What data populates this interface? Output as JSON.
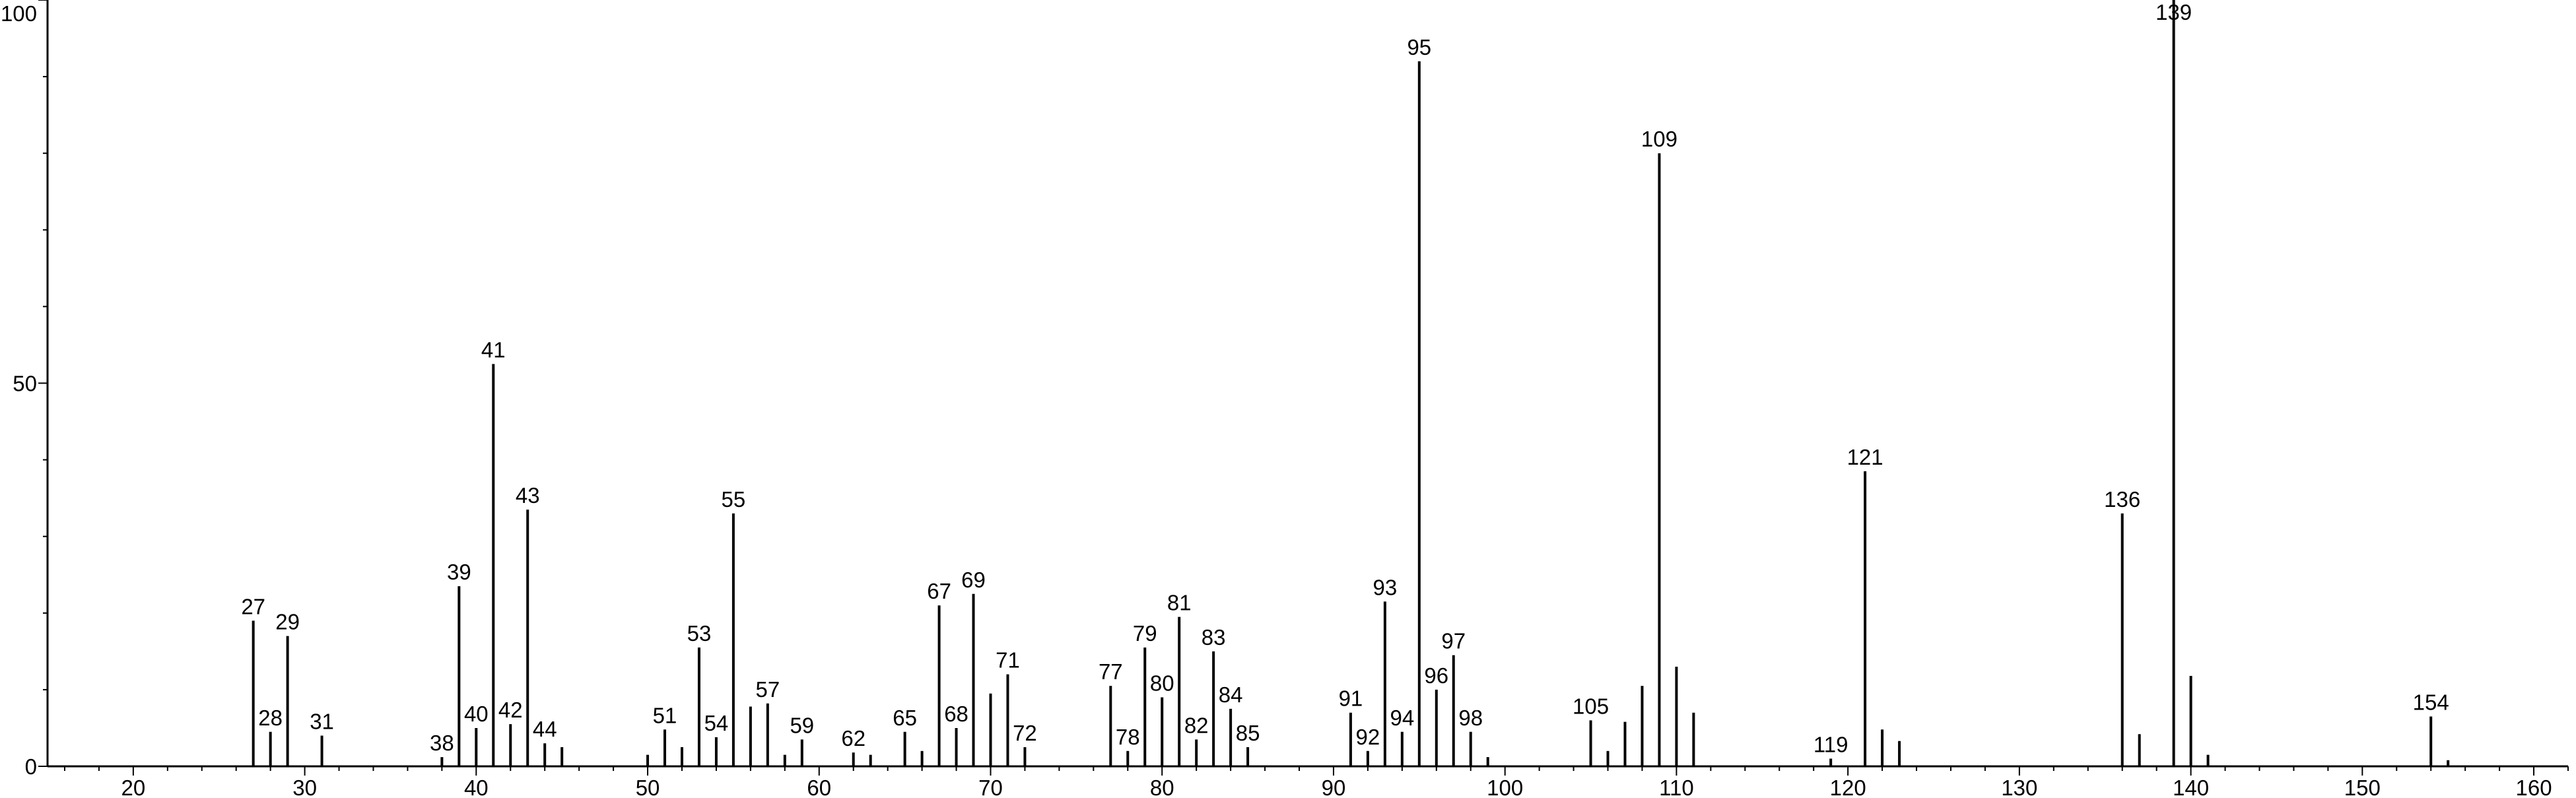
{
  "chart_data": {
    "type": "bar",
    "title": "",
    "xlabel": "",
    "ylabel": "",
    "xlim": [
      15,
      162
    ],
    "ylim": [
      0,
      100
    ],
    "x_ticks": [
      20,
      30,
      40,
      50,
      60,
      70,
      80,
      90,
      100,
      110,
      120,
      130,
      140,
      150,
      160
    ],
    "y_ticks": [
      0,
      50,
      100
    ],
    "grid": false,
    "legend": "none",
    "bar_color": "#000000",
    "peaks": [
      {
        "mz": 27,
        "intensity": 19,
        "label": "27"
      },
      {
        "mz": 28,
        "intensity": 4.5,
        "label": "28"
      },
      {
        "mz": 29,
        "intensity": 17,
        "label": "29"
      },
      {
        "mz": 31,
        "intensity": 4,
        "label": "31"
      },
      {
        "mz": 38,
        "intensity": 1.2,
        "label": "38"
      },
      {
        "mz": 39,
        "intensity": 23.5,
        "label": "39"
      },
      {
        "mz": 40,
        "intensity": 5,
        "label": "40"
      },
      {
        "mz": 41,
        "intensity": 52.5,
        "label": "41"
      },
      {
        "mz": 42,
        "intensity": 5.5,
        "label": "42"
      },
      {
        "mz": 43,
        "intensity": 33.5,
        "label": "43"
      },
      {
        "mz": 44,
        "intensity": 3,
        "label": "44"
      },
      {
        "mz": 45,
        "intensity": 2.5
      },
      {
        "mz": 50,
        "intensity": 1.5
      },
      {
        "mz": 51,
        "intensity": 4.8,
        "label": "51"
      },
      {
        "mz": 52,
        "intensity": 2.5
      },
      {
        "mz": 53,
        "intensity": 15.5,
        "label": "53"
      },
      {
        "mz": 54,
        "intensity": 3.8,
        "label": "54"
      },
      {
        "mz": 55,
        "intensity": 33,
        "label": "55"
      },
      {
        "mz": 56,
        "intensity": 7.8
      },
      {
        "mz": 57,
        "intensity": 8.2,
        "label": "57"
      },
      {
        "mz": 58,
        "intensity": 1.5
      },
      {
        "mz": 59,
        "intensity": 3.5,
        "label": "59"
      },
      {
        "mz": 62,
        "intensity": 1.8,
        "label": "62"
      },
      {
        "mz": 63,
        "intensity": 1.5
      },
      {
        "mz": 65,
        "intensity": 4.5,
        "label": "65"
      },
      {
        "mz": 66,
        "intensity": 2
      },
      {
        "mz": 67,
        "intensity": 21,
        "label": "67"
      },
      {
        "mz": 68,
        "intensity": 5,
        "label": "68"
      },
      {
        "mz": 69,
        "intensity": 22.5,
        "label": "69"
      },
      {
        "mz": 70,
        "intensity": 9.5
      },
      {
        "mz": 71,
        "intensity": 12,
        "label": "71"
      },
      {
        "mz": 72,
        "intensity": 2.5,
        "label": "72"
      },
      {
        "mz": 77,
        "intensity": 10.5,
        "label": "77"
      },
      {
        "mz": 78,
        "intensity": 2,
        "label": "78"
      },
      {
        "mz": 79,
        "intensity": 15.5,
        "label": "79"
      },
      {
        "mz": 80,
        "intensity": 9,
        "label": "80"
      },
      {
        "mz": 81,
        "intensity": 19.5,
        "label": "81"
      },
      {
        "mz": 82,
        "intensity": 3.5,
        "label": "82"
      },
      {
        "mz": 83,
        "intensity": 15,
        "label": "83"
      },
      {
        "mz": 84,
        "intensity": 7.5,
        "label": "84"
      },
      {
        "mz": 85,
        "intensity": 2.5,
        "label": "85"
      },
      {
        "mz": 91,
        "intensity": 7,
        "label": "91"
      },
      {
        "mz": 92,
        "intensity": 2,
        "label": "92"
      },
      {
        "mz": 93,
        "intensity": 21.5,
        "label": "93"
      },
      {
        "mz": 94,
        "intensity": 4.5,
        "label": "94"
      },
      {
        "mz": 95,
        "intensity": 92,
        "label": "95"
      },
      {
        "mz": 96,
        "intensity": 10,
        "label": "96"
      },
      {
        "mz": 97,
        "intensity": 14.5,
        "label": "97"
      },
      {
        "mz": 98,
        "intensity": 4.5,
        "label": "98"
      },
      {
        "mz": 99,
        "intensity": 1.2
      },
      {
        "mz": 105,
        "intensity": 6,
        "label": "105"
      },
      {
        "mz": 106,
        "intensity": 2
      },
      {
        "mz": 107,
        "intensity": 5.8
      },
      {
        "mz": 108,
        "intensity": 10.5
      },
      {
        "mz": 109,
        "intensity": 80,
        "label": "109"
      },
      {
        "mz": 110,
        "intensity": 13
      },
      {
        "mz": 111,
        "intensity": 7
      },
      {
        "mz": 119,
        "intensity": 1,
        "label": "119"
      },
      {
        "mz": 121,
        "intensity": 38.5,
        "label": "121"
      },
      {
        "mz": 122,
        "intensity": 4.8
      },
      {
        "mz": 123,
        "intensity": 3.3
      },
      {
        "mz": 136,
        "intensity": 33,
        "label": "136"
      },
      {
        "mz": 137,
        "intensity": 4.2
      },
      {
        "mz": 139,
        "intensity": 100,
        "label": "139"
      },
      {
        "mz": 140,
        "intensity": 11.8
      },
      {
        "mz": 141,
        "intensity": 1.5
      },
      {
        "mz": 154,
        "intensity": 6.5,
        "label": "154"
      },
      {
        "mz": 155,
        "intensity": 0.8
      }
    ]
  }
}
